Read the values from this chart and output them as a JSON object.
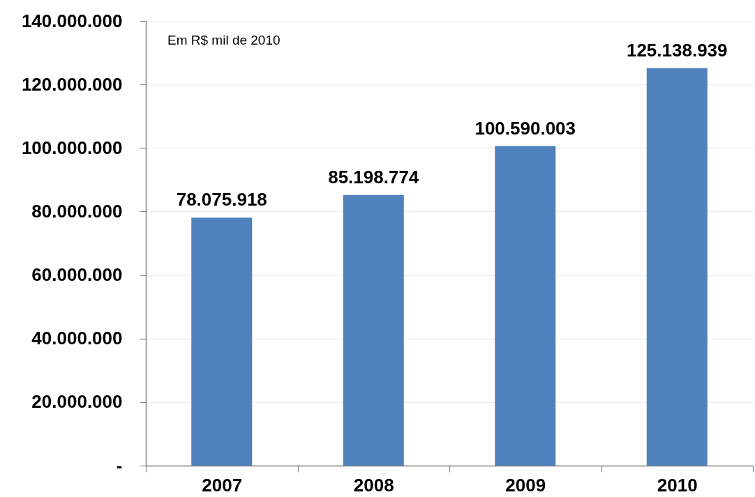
{
  "chart_data": {
    "type": "bar",
    "categories": [
      "2007",
      "2008",
      "2009",
      "2010"
    ],
    "values": [
      78075918,
      85198774,
      100590003,
      125138939
    ],
    "value_labels": [
      "78.075.918",
      "85.198.774",
      "100.590.003",
      "125.138.939"
    ],
    "color": "#4f81bd",
    "ylim": [
      0,
      140000000
    ],
    "yticks": [
      {
        "value": 0,
        "label": "-"
      },
      {
        "value": 20000000,
        "label": "20.000.000"
      },
      {
        "value": 40000000,
        "label": "40.000.000"
      },
      {
        "value": 60000000,
        "label": "60.000.000"
      },
      {
        "value": 80000000,
        "label": "80.000.000"
      },
      {
        "value": 100000000,
        "label": "100.000.000"
      },
      {
        "value": 120000000,
        "label": "120.000.000"
      },
      {
        "value": 140000000,
        "label": "140.000.000"
      }
    ],
    "grid": "y",
    "annotations": [
      "Em R$ mil de 2010"
    ]
  }
}
